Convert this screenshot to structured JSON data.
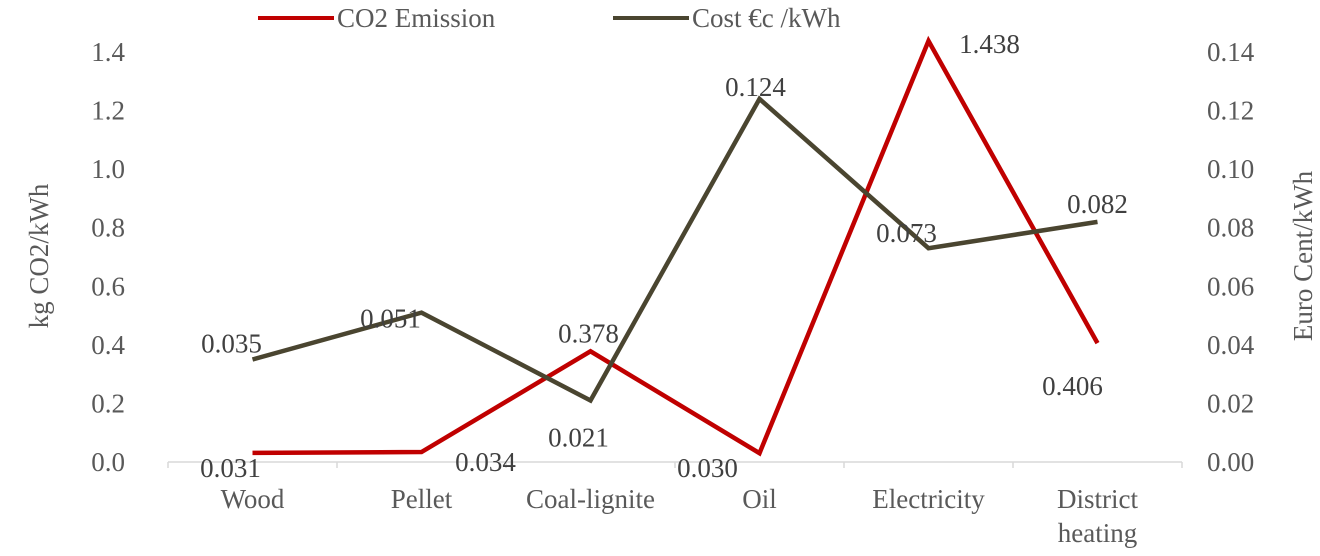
{
  "chart_data": {
    "type": "line",
    "categories": [
      "Wood",
      "Pellet",
      "Coal-lignite",
      "Oil",
      "Electricity",
      "District heating"
    ],
    "series": [
      {
        "name": "CO2 Emission",
        "axis": "left",
        "color": "#c00000",
        "values": [
          0.031,
          0.034,
          0.378,
          0.03,
          1.438,
          0.406
        ],
        "labels": [
          "0.031",
          "0.034",
          "0.378",
          "0.030",
          "1.438",
          "0.406"
        ]
      },
      {
        "name": "Cost €c /kWh",
        "axis": "right",
        "color": "#4a4530",
        "values": [
          0.035,
          0.051,
          0.021,
          0.124,
          0.073,
          0.082
        ],
        "labels": [
          "0.035",
          "0.051",
          "0.021",
          "0.124",
          "0.073",
          "0.082"
        ]
      }
    ],
    "ylabel_left": "kg CO2/kWh",
    "ylabel_right": "Euro Cent/kWh",
    "ylim_left": [
      0,
      1.4
    ],
    "ylim_right": [
      0,
      0.14
    ],
    "yticks_left": [
      "0.0",
      "0.2",
      "0.4",
      "0.6",
      "0.8",
      "1.0",
      "1.2",
      "1.4"
    ],
    "yticks_right": [
      "0.00",
      "0.02",
      "0.04",
      "0.06",
      "0.08",
      "0.10",
      "0.12",
      "0.14"
    ],
    "legend_position": "top-center",
    "grid": false
  }
}
